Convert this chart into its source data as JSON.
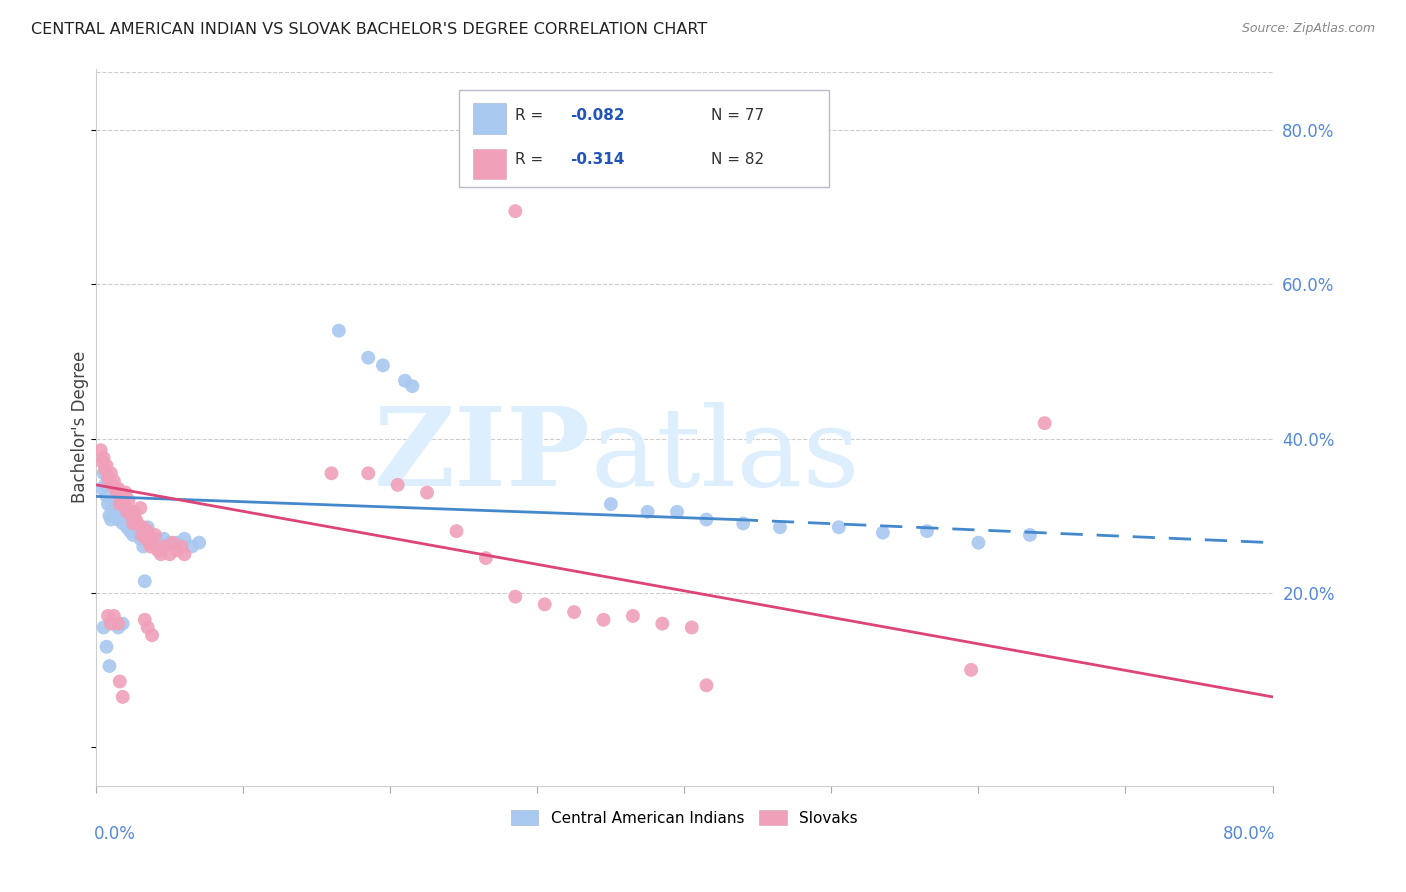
{
  "title": "CENTRAL AMERICAN INDIAN VS SLOVAK BACHELOR'S DEGREE CORRELATION CHART",
  "source": "Source: ZipAtlas.com",
  "ylabel": "Bachelor's Degree",
  "ytick_values": [
    0.2,
    0.4,
    0.6,
    0.8
  ],
  "xlim": [
    0.0,
    0.8
  ],
  "ylim": [
    -0.05,
    0.88
  ],
  "blue_color": "#a8c8f0",
  "pink_color": "#f0a0b8",
  "blue_line_color": "#4488cc",
  "pink_line_color": "#dd4477",
  "blue_scatter": [
    [
      0.004,
      0.335
    ],
    [
      0.005,
      0.355
    ],
    [
      0.006,
      0.34
    ],
    [
      0.007,
      0.325
    ],
    [
      0.008,
      0.315
    ],
    [
      0.009,
      0.3
    ],
    [
      0.01,
      0.295
    ],
    [
      0.011,
      0.31
    ],
    [
      0.012,
      0.305
    ],
    [
      0.013,
      0.32
    ],
    [
      0.014,
      0.3
    ],
    [
      0.015,
      0.295
    ],
    [
      0.016,
      0.31
    ],
    [
      0.017,
      0.305
    ],
    [
      0.018,
      0.29
    ],
    [
      0.019,
      0.3
    ],
    [
      0.02,
      0.295
    ],
    [
      0.021,
      0.285
    ],
    [
      0.022,
      0.29
    ],
    [
      0.023,
      0.28
    ],
    [
      0.024,
      0.285
    ],
    [
      0.025,
      0.275
    ],
    [
      0.026,
      0.295
    ],
    [
      0.027,
      0.28
    ],
    [
      0.028,
      0.285
    ],
    [
      0.03,
      0.27
    ],
    [
      0.032,
      0.26
    ],
    [
      0.033,
      0.215
    ],
    [
      0.035,
      0.285
    ],
    [
      0.036,
      0.265
    ],
    [
      0.038,
      0.265
    ],
    [
      0.04,
      0.27
    ],
    [
      0.042,
      0.265
    ],
    [
      0.044,
      0.26
    ],
    [
      0.046,
      0.27
    ],
    [
      0.05,
      0.265
    ],
    [
      0.055,
      0.265
    ],
    [
      0.06,
      0.27
    ],
    [
      0.065,
      0.26
    ],
    [
      0.07,
      0.265
    ],
    [
      0.005,
      0.155
    ],
    [
      0.007,
      0.13
    ],
    [
      0.009,
      0.105
    ],
    [
      0.015,
      0.155
    ],
    [
      0.018,
      0.16
    ],
    [
      0.165,
      0.54
    ],
    [
      0.185,
      0.505
    ],
    [
      0.195,
      0.495
    ],
    [
      0.21,
      0.475
    ],
    [
      0.215,
      0.468
    ],
    [
      0.35,
      0.315
    ],
    [
      0.375,
      0.305
    ],
    [
      0.395,
      0.305
    ],
    [
      0.415,
      0.295
    ],
    [
      0.44,
      0.29
    ],
    [
      0.465,
      0.285
    ],
    [
      0.505,
      0.285
    ],
    [
      0.535,
      0.278
    ],
    [
      0.565,
      0.28
    ],
    [
      0.6,
      0.265
    ],
    [
      0.635,
      0.275
    ]
  ],
  "pink_scatter": [
    [
      0.003,
      0.385
    ],
    [
      0.004,
      0.37
    ],
    [
      0.005,
      0.375
    ],
    [
      0.006,
      0.36
    ],
    [
      0.007,
      0.365
    ],
    [
      0.008,
      0.35
    ],
    [
      0.009,
      0.345
    ],
    [
      0.01,
      0.355
    ],
    [
      0.011,
      0.34
    ],
    [
      0.012,
      0.345
    ],
    [
      0.013,
      0.335
    ],
    [
      0.014,
      0.33
    ],
    [
      0.015,
      0.335
    ],
    [
      0.016,
      0.315
    ],
    [
      0.017,
      0.32
    ],
    [
      0.018,
      0.325
    ],
    [
      0.019,
      0.315
    ],
    [
      0.02,
      0.33
    ],
    [
      0.021,
      0.305
    ],
    [
      0.022,
      0.32
    ],
    [
      0.023,
      0.305
    ],
    [
      0.024,
      0.3
    ],
    [
      0.025,
      0.29
    ],
    [
      0.026,
      0.305
    ],
    [
      0.027,
      0.295
    ],
    [
      0.028,
      0.29
    ],
    [
      0.03,
      0.31
    ],
    [
      0.031,
      0.275
    ],
    [
      0.032,
      0.285
    ],
    [
      0.033,
      0.275
    ],
    [
      0.034,
      0.27
    ],
    [
      0.035,
      0.28
    ],
    [
      0.036,
      0.265
    ],
    [
      0.037,
      0.26
    ],
    [
      0.038,
      0.27
    ],
    [
      0.04,
      0.275
    ],
    [
      0.042,
      0.255
    ],
    [
      0.044,
      0.25
    ],
    [
      0.046,
      0.26
    ],
    [
      0.05,
      0.25
    ],
    [
      0.052,
      0.265
    ],
    [
      0.055,
      0.255
    ],
    [
      0.058,
      0.26
    ],
    [
      0.06,
      0.25
    ],
    [
      0.008,
      0.17
    ],
    [
      0.01,
      0.16
    ],
    [
      0.012,
      0.17
    ],
    [
      0.015,
      0.16
    ],
    [
      0.016,
      0.085
    ],
    [
      0.018,
      0.065
    ],
    [
      0.033,
      0.165
    ],
    [
      0.035,
      0.155
    ],
    [
      0.038,
      0.145
    ],
    [
      0.16,
      0.355
    ],
    [
      0.185,
      0.355
    ],
    [
      0.205,
      0.34
    ],
    [
      0.225,
      0.33
    ],
    [
      0.245,
      0.28
    ],
    [
      0.265,
      0.245
    ],
    [
      0.285,
      0.195
    ],
    [
      0.305,
      0.185
    ],
    [
      0.325,
      0.175
    ],
    [
      0.345,
      0.165
    ],
    [
      0.365,
      0.17
    ],
    [
      0.385,
      0.16
    ],
    [
      0.405,
      0.155
    ],
    [
      0.415,
      0.08
    ],
    [
      0.285,
      0.695
    ],
    [
      0.595,
      0.1
    ],
    [
      0.645,
      0.42
    ]
  ],
  "blue_trendline_solid": [
    [
      0.0,
      0.325
    ],
    [
      0.435,
      0.295
    ]
  ],
  "blue_trendline_dashed": [
    [
      0.435,
      0.295
    ],
    [
      0.8,
      0.265
    ]
  ],
  "pink_trendline": [
    [
      0.0,
      0.34
    ],
    [
      0.8,
      0.065
    ]
  ],
  "watermark_zip": "ZIP",
  "watermark_atlas": "atlas",
  "legend": {
    "r1": "-0.082",
    "n1": "77",
    "r2": "-0.314",
    "n2": "82"
  }
}
